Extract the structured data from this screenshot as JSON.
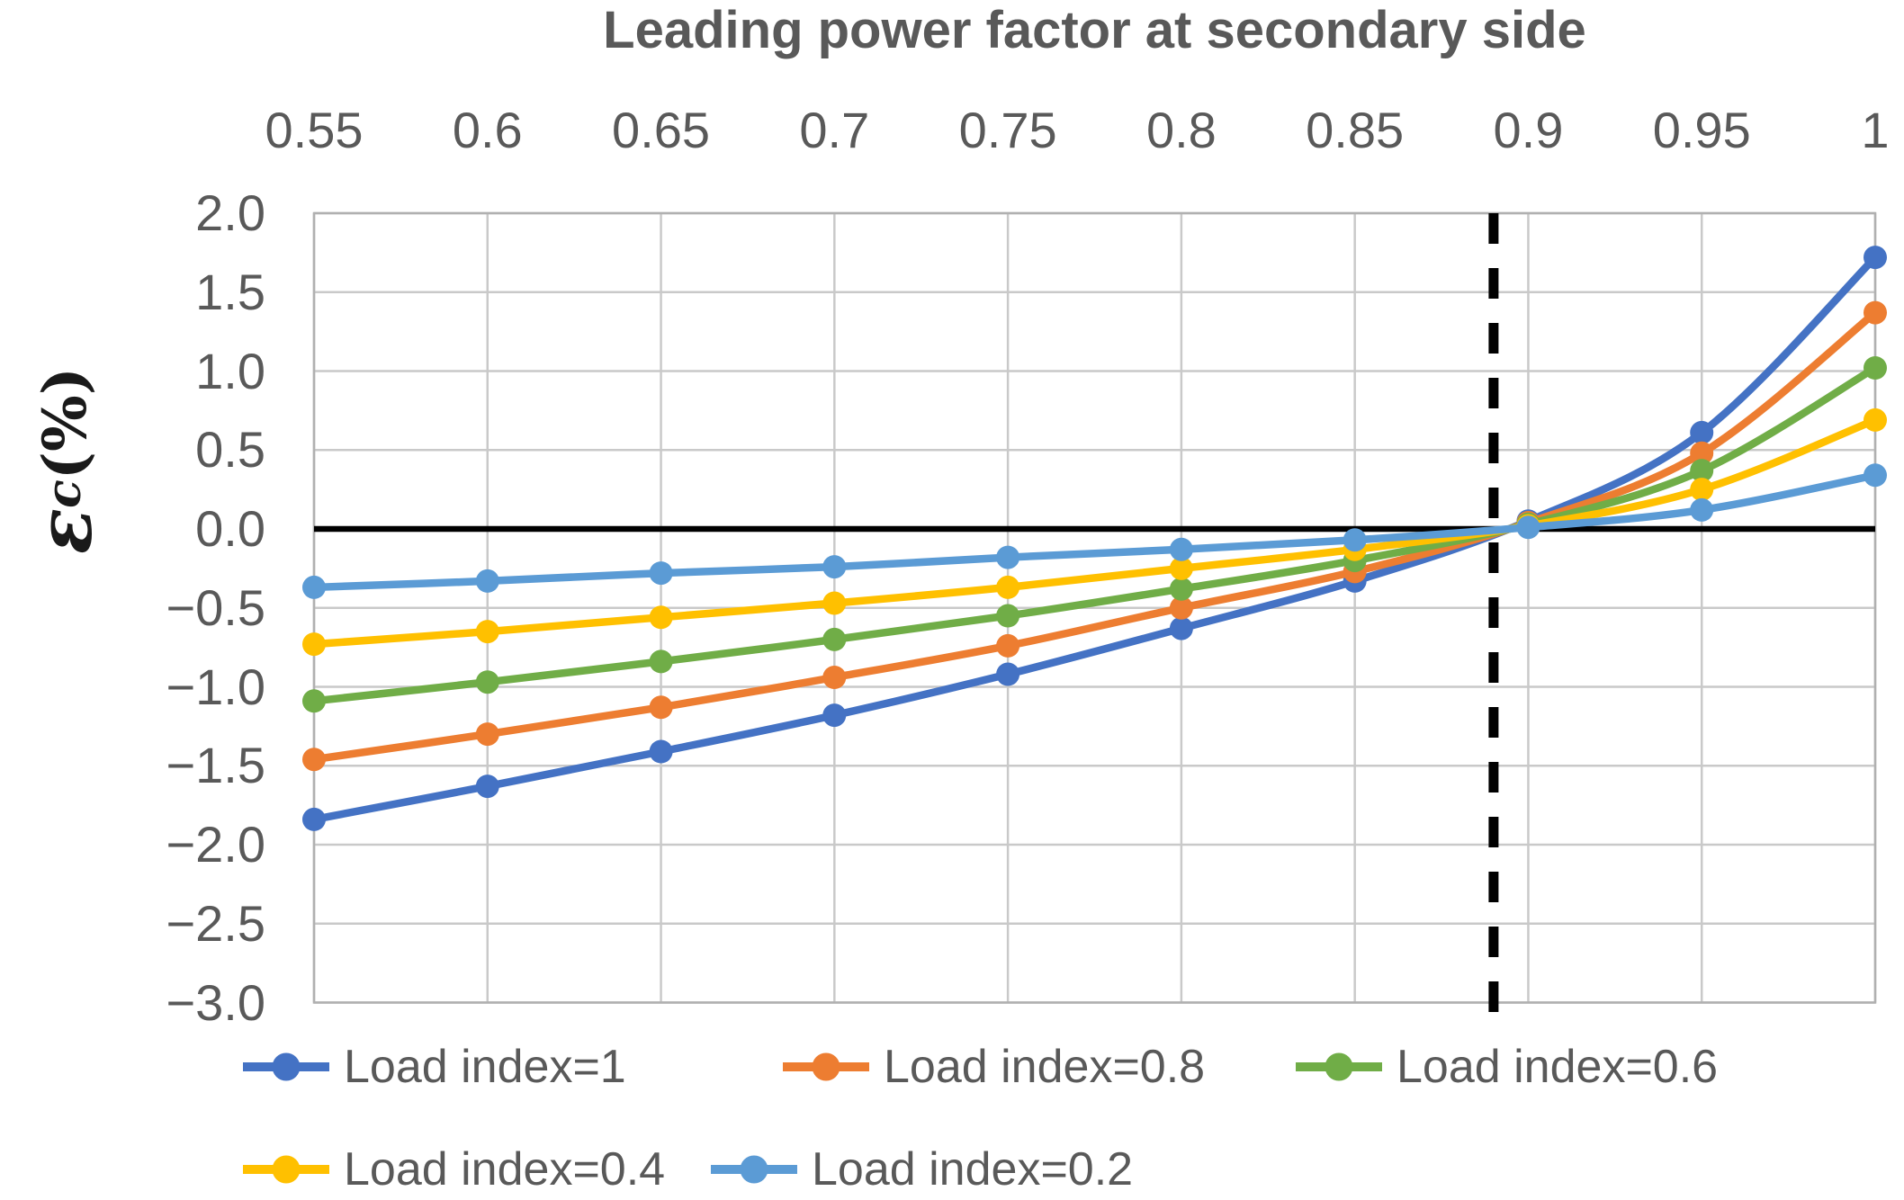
{
  "chart_data": {
    "type": "line",
    "title": "Leading power factor at secondary side",
    "ylabel_symbol": "ε",
    "ylabel_subscript": "c",
    "ylabel_unit": " (%)",
    "xlabel": "",
    "xlim": [
      0.55,
      1.0
    ],
    "ylim": [
      -3.0,
      2.0
    ],
    "grid": true,
    "legend_position": "bottom",
    "x": [
      0.55,
      0.6,
      0.65,
      0.7,
      0.75,
      0.8,
      0.85,
      0.9,
      0.95,
      1.0
    ],
    "x_ticks": [
      {
        "label": "0.55",
        "value": 0.55
      },
      {
        "label": "0.6",
        "value": 0.6
      },
      {
        "label": "0.65",
        "value": 0.65
      },
      {
        "label": "0.7",
        "value": 0.7
      },
      {
        "label": "0.75",
        "value": 0.75
      },
      {
        "label": "0.8",
        "value": 0.8
      },
      {
        "label": "0.85",
        "value": 0.85
      },
      {
        "label": "0.9",
        "value": 0.9
      },
      {
        "label": "0.95",
        "value": 0.95
      },
      {
        "label": "1",
        "value": 1.0
      }
    ],
    "y_ticks": [
      {
        "label": "2.0",
        "value": 2.0
      },
      {
        "label": "1.5",
        "value": 1.5
      },
      {
        "label": "1.0",
        "value": 1.0
      },
      {
        "label": "0.5",
        "value": 0.5
      },
      {
        "label": "0.0",
        "value": 0.0
      },
      {
        "label": "−0.5",
        "value": -0.5
      },
      {
        "label": "−1.0",
        "value": -1.0
      },
      {
        "label": "−1.5",
        "value": -1.5
      },
      {
        "label": "−2.0",
        "value": -2.0
      },
      {
        "label": "−2.5",
        "value": -2.5
      },
      {
        "label": "−3.0",
        "value": -3.0
      }
    ],
    "series": [
      {
        "name": "Load index=1",
        "color": "#4472C4",
        "values": [
          -1.84,
          -1.63,
          -1.41,
          -1.18,
          -0.92,
          -0.63,
          -0.33,
          0.05,
          0.61,
          1.72
        ]
      },
      {
        "name": "Load index=0.8",
        "color": "#ED7D31",
        "values": [
          -1.46,
          -1.3,
          -1.13,
          -0.94,
          -0.74,
          -0.5,
          -0.27,
          0.04,
          0.48,
          1.37
        ]
      },
      {
        "name": "Load index=0.6",
        "color": "#70AD47",
        "values": [
          -1.09,
          -0.97,
          -0.84,
          -0.7,
          -0.55,
          -0.38,
          -0.2,
          0.03,
          0.37,
          1.02
        ]
      },
      {
        "name": "Load index=0.4",
        "color": "#FFC000",
        "values": [
          -0.73,
          -0.65,
          -0.56,
          -0.47,
          -0.37,
          -0.25,
          -0.13,
          0.02,
          0.25,
          0.69
        ]
      },
      {
        "name": "Load index=0.2",
        "color": "#5B9BD5",
        "values": [
          -0.37,
          -0.33,
          -0.28,
          -0.24,
          -0.18,
          -0.13,
          -0.07,
          0.01,
          0.12,
          0.34
        ]
      }
    ],
    "reference_lines": {
      "horizontal_zero_y": 0.0,
      "vertical_dashed_x": 0.89
    },
    "legend_rows": [
      [
        0,
        1,
        2
      ],
      [
        3,
        4
      ]
    ],
    "palette": {
      "text": "#595959",
      "gridline": "#c9c9c9",
      "plot_border": "#b0b0b0",
      "reference_line": "#000000"
    }
  }
}
